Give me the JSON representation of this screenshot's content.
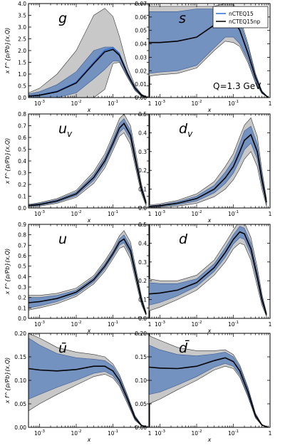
{
  "figure": {
    "legend": [
      "nCTEQ15",
      "nCTEQ15np"
    ],
    "annotation": "Q=1.3 GeV",
    "ylabel": "x f^{p/Pb}(x,Q)",
    "xlabel": "x",
    "colors": {
      "band_outer": "#c8c8c8",
      "band_inner": "#6f8fc0",
      "line_main": "#000000",
      "line_alt": "#2a6fdb",
      "frame": "#000000"
    }
  },
  "chart_data": [
    {
      "type": "line",
      "title": "g",
      "xscale": "log",
      "xlim": [
        0.0005,
        1
      ],
      "ylim": [
        0,
        4.0
      ],
      "yticks": [
        "0.0",
        "0.5",
        "1.0",
        "1.5",
        "2.0",
        "2.5",
        "3.0",
        "3.5",
        "4.0"
      ],
      "xticks": [
        "10^-3",
        "10^-2",
        "10^-1",
        "1"
      ],
      "x": [
        0.0005,
        0.001,
        0.003,
        0.01,
        0.03,
        0.06,
        0.1,
        0.15,
        0.25,
        0.4,
        0.6,
        0.9
      ],
      "series": [
        {
          "name": "nCTEQ15np",
          "values": [
            0.06,
            0.1,
            0.25,
            0.62,
            1.45,
            1.95,
            2.05,
            1.8,
            1.0,
            0.4,
            0.1,
            0.0
          ]
        },
        {
          "name": "nCTEQ15",
          "values": [
            0.07,
            0.11,
            0.27,
            0.66,
            1.5,
            2.02,
            2.12,
            1.85,
            1.02,
            0.41,
            0.1,
            0.0
          ]
        }
      ],
      "band_outer": {
        "lower": [
          0.0,
          0.0,
          0.0,
          0.0,
          0.0,
          0.35,
          1.45,
          1.5,
          0.85,
          0.3,
          0.05,
          0.0
        ],
        "upper": [
          0.2,
          0.4,
          1.0,
          2.0,
          3.5,
          3.8,
          3.45,
          2.6,
          1.3,
          0.5,
          0.15,
          0.0
        ]
      },
      "band_inner": {
        "lower": [
          0.0,
          0.0,
          0.0,
          0.2,
          0.8,
          1.2,
          1.55,
          1.55,
          0.9,
          0.32,
          0.07,
          0.0
        ],
        "upper": [
          0.15,
          0.25,
          0.55,
          1.1,
          2.0,
          2.15,
          2.15,
          1.9,
          1.08,
          0.45,
          0.12,
          0.0
        ]
      }
    },
    {
      "type": "line",
      "title": "s",
      "xscale": "log",
      "xlim": [
        0.0005,
        1
      ],
      "ylim": [
        0,
        0.07
      ],
      "yticks": [
        "0.00",
        "0.01",
        "0.02",
        "0.03",
        "0.04",
        "0.05",
        "0.06",
        "0.07"
      ],
      "xticks": [
        "10^-3",
        "10^-2",
        "10^-1",
        "1"
      ],
      "x": [
        0.0005,
        0.001,
        0.003,
        0.01,
        0.03,
        0.06,
        0.1,
        0.15,
        0.25,
        0.4,
        0.6,
        0.9
      ],
      "series": [
        {
          "name": "nCTEQ15np",
          "values": [
            0.041,
            0.041,
            0.042,
            0.045,
            0.054,
            0.06,
            0.058,
            0.05,
            0.033,
            0.015,
            0.004,
            0.0
          ]
        }
      ],
      "band_outer": {
        "lower": [
          0.016,
          0.017,
          0.018,
          0.022,
          0.035,
          0.042,
          0.041,
          0.038,
          0.026,
          0.011,
          0.003,
          0.0
        ],
        "upper": [
          0.068,
          0.068,
          0.068,
          0.068,
          0.068,
          0.07,
          0.07,
          0.06,
          0.04,
          0.018,
          0.005,
          0.0
        ]
      },
      "band_inner": {
        "lower": [
          0.018,
          0.019,
          0.02,
          0.024,
          0.037,
          0.045,
          0.045,
          0.04,
          0.028,
          0.012,
          0.003,
          0.0
        ],
        "upper": [
          0.064,
          0.064,
          0.064,
          0.066,
          0.066,
          0.067,
          0.065,
          0.057,
          0.038,
          0.017,
          0.005,
          0.0
        ]
      }
    },
    {
      "type": "line",
      "title": "u_v",
      "xscale": "log",
      "xlim": [
        0.0005,
        1
      ],
      "ylim": [
        0,
        0.8
      ],
      "yticks": [
        "0.0",
        "0.1",
        "0.2",
        "0.3",
        "0.4",
        "0.5",
        "0.6",
        "0.7",
        "0.8"
      ],
      "xticks": [
        "10^-3",
        "10^-2",
        "10^-1",
        "1"
      ],
      "x": [
        0.0005,
        0.001,
        0.003,
        0.01,
        0.03,
        0.06,
        0.1,
        0.15,
        0.2,
        0.3,
        0.45,
        0.6,
        0.8
      ],
      "series": [
        {
          "name": "nCTEQ15np",
          "values": [
            0.02,
            0.03,
            0.06,
            0.12,
            0.26,
            0.4,
            0.55,
            0.68,
            0.72,
            0.62,
            0.35,
            0.16,
            0.04
          ]
        }
      ],
      "band_outer": {
        "lower": [
          0.01,
          0.015,
          0.04,
          0.09,
          0.21,
          0.34,
          0.49,
          0.61,
          0.64,
          0.54,
          0.29,
          0.12,
          0.02
        ],
        "upper": [
          0.03,
          0.045,
          0.08,
          0.15,
          0.31,
          0.46,
          0.62,
          0.76,
          0.8,
          0.7,
          0.42,
          0.2,
          0.06
        ]
      },
      "band_inner": {
        "lower": [
          0.015,
          0.022,
          0.05,
          0.105,
          0.235,
          0.37,
          0.52,
          0.645,
          0.68,
          0.58,
          0.32,
          0.14,
          0.03
        ],
        "upper": [
          0.025,
          0.038,
          0.07,
          0.135,
          0.285,
          0.43,
          0.585,
          0.72,
          0.76,
          0.66,
          0.38,
          0.18,
          0.05
        ]
      }
    },
    {
      "type": "line",
      "title": "d_v",
      "xscale": "log",
      "xlim": [
        0.0005,
        1
      ],
      "ylim": [
        0,
        0.5
      ],
      "yticks": [
        "0.0",
        "0.1",
        "0.2",
        "0.3",
        "0.4",
        "0.5"
      ],
      "xticks": [
        "10^-3",
        "10^-2",
        "10^-1",
        "1"
      ],
      "x": [
        0.0005,
        0.001,
        0.003,
        0.01,
        0.03,
        0.06,
        0.1,
        0.15,
        0.2,
        0.3,
        0.45,
        0.6,
        0.8
      ],
      "series": [
        {
          "name": "nCTEQ15np",
          "values": [
            0.008,
            0.012,
            0.025,
            0.05,
            0.1,
            0.16,
            0.22,
            0.3,
            0.36,
            0.39,
            0.3,
            0.15,
            0.03
          ]
        }
      ],
      "band_outer": {
        "lower": [
          0.002,
          0.004,
          0.01,
          0.025,
          0.06,
          0.1,
          0.15,
          0.21,
          0.26,
          0.3,
          0.22,
          0.1,
          0.01
        ],
        "upper": [
          0.015,
          0.022,
          0.04,
          0.075,
          0.14,
          0.22,
          0.29,
          0.38,
          0.44,
          0.48,
          0.38,
          0.2,
          0.05
        ]
      },
      "band_inner": {
        "lower": [
          0.005,
          0.008,
          0.017,
          0.037,
          0.08,
          0.13,
          0.185,
          0.255,
          0.31,
          0.345,
          0.26,
          0.125,
          0.02
        ],
        "upper": [
          0.011,
          0.016,
          0.033,
          0.063,
          0.12,
          0.19,
          0.255,
          0.345,
          0.41,
          0.435,
          0.34,
          0.175,
          0.04
        ]
      }
    },
    {
      "type": "line",
      "title": "u",
      "xscale": "log",
      "xlim": [
        0.0005,
        1
      ],
      "ylim": [
        0,
        0.9
      ],
      "yticks": [
        "0.0",
        "0.1",
        "0.2",
        "0.3",
        "0.4",
        "0.5",
        "0.6",
        "0.7",
        "0.8",
        "0.9"
      ],
      "xticks": [
        "10^-3",
        "10^-2",
        "10^-1",
        "1"
      ],
      "x": [
        0.0005,
        0.001,
        0.003,
        0.01,
        0.03,
        0.06,
        0.1,
        0.15,
        0.2,
        0.3,
        0.45,
        0.6,
        0.8
      ],
      "series": [
        {
          "name": "nCTEQ15np",
          "values": [
            0.15,
            0.16,
            0.19,
            0.25,
            0.37,
            0.5,
            0.62,
            0.73,
            0.76,
            0.65,
            0.37,
            0.17,
            0.04
          ]
        }
      ],
      "band_outer": {
        "lower": [
          0.08,
          0.1,
          0.14,
          0.21,
          0.33,
          0.45,
          0.57,
          0.67,
          0.69,
          0.57,
          0.31,
          0.13,
          0.03
        ],
        "upper": [
          0.22,
          0.22,
          0.24,
          0.29,
          0.41,
          0.55,
          0.67,
          0.79,
          0.84,
          0.73,
          0.43,
          0.21,
          0.06
        ]
      },
      "band_inner": {
        "lower": [
          0.1,
          0.12,
          0.16,
          0.23,
          0.35,
          0.475,
          0.595,
          0.7,
          0.725,
          0.61,
          0.34,
          0.15,
          0.035
        ],
        "upper": [
          0.2,
          0.2,
          0.22,
          0.27,
          0.39,
          0.525,
          0.645,
          0.76,
          0.8,
          0.69,
          0.4,
          0.19,
          0.05
        ]
      }
    },
    {
      "type": "line",
      "title": "d",
      "xscale": "log",
      "xlim": [
        0.0005,
        1
      ],
      "ylim": [
        0,
        0.5
      ],
      "yticks": [
        "0.0",
        "0.1",
        "0.2",
        "0.3",
        "0.4",
        "0.5"
      ],
      "xticks": [
        "10^-3",
        "10^-2",
        "10^-1",
        "1"
      ],
      "x": [
        0.0005,
        0.001,
        0.003,
        0.01,
        0.03,
        0.06,
        0.1,
        0.15,
        0.2,
        0.3,
        0.45,
        0.6,
        0.8
      ],
      "series": [
        {
          "name": "nCTEQ15np",
          "values": [
            0.13,
            0.135,
            0.15,
            0.19,
            0.27,
            0.35,
            0.42,
            0.46,
            0.45,
            0.37,
            0.22,
            0.1,
            0.02
          ]
        }
      ],
      "band_outer": {
        "lower": [
          0.04,
          0.06,
          0.1,
          0.15,
          0.23,
          0.3,
          0.37,
          0.4,
          0.39,
          0.31,
          0.17,
          0.07,
          0.01
        ],
        "upper": [
          0.21,
          0.2,
          0.2,
          0.23,
          0.31,
          0.4,
          0.47,
          0.52,
          0.51,
          0.43,
          0.27,
          0.13,
          0.03
        ]
      },
      "band_inner": {
        "lower": [
          0.07,
          0.085,
          0.12,
          0.17,
          0.25,
          0.325,
          0.395,
          0.43,
          0.42,
          0.34,
          0.195,
          0.085,
          0.015
        ],
        "upper": [
          0.19,
          0.185,
          0.185,
          0.21,
          0.29,
          0.375,
          0.445,
          0.49,
          0.48,
          0.4,
          0.245,
          0.115,
          0.025
        ]
      }
    },
    {
      "type": "line",
      "title": "ū",
      "xscale": "log",
      "xlim": [
        0.0005,
        1
      ],
      "ylim": [
        0,
        0.2
      ],
      "yticks": [
        "0.00",
        "0.05",
        "0.10",
        "0.15",
        "0.20"
      ],
      "xticks": [
        "10^-3",
        "10^-2",
        "10^-1",
        "1"
      ],
      "x": [
        0.0005,
        0.001,
        0.003,
        0.01,
        0.03,
        0.06,
        0.1,
        0.15,
        0.25,
        0.4,
        0.6,
        0.9
      ],
      "series": [
        {
          "name": "nCTEQ15np",
          "values": [
            0.125,
            0.122,
            0.12,
            0.123,
            0.13,
            0.13,
            0.12,
            0.1,
            0.06,
            0.02,
            0.004,
            0.0
          ]
        }
      ],
      "band_outer": {
        "lower": [
          0.035,
          0.05,
          0.07,
          0.09,
          0.108,
          0.113,
          0.105,
          0.088,
          0.05,
          0.015,
          0.003,
          0.0
        ],
        "upper": [
          0.2,
          0.19,
          0.17,
          0.16,
          0.155,
          0.15,
          0.135,
          0.112,
          0.068,
          0.025,
          0.005,
          0.0
        ]
      },
      "band_inner": {
        "lower": [
          0.06,
          0.07,
          0.085,
          0.1,
          0.115,
          0.119,
          0.11,
          0.092,
          0.054,
          0.017,
          0.003,
          0.0
        ],
        "upper": [
          0.19,
          0.175,
          0.157,
          0.148,
          0.145,
          0.142,
          0.13,
          0.108,
          0.065,
          0.023,
          0.005,
          0.0
        ]
      }
    },
    {
      "type": "line",
      "title": "d̄",
      "xscale": "log",
      "xlim": [
        0.0005,
        1
      ],
      "ylim": [
        0,
        0.2
      ],
      "yticks": [
        "0.00",
        "0.05",
        "0.10",
        "0.15",
        "0.20"
      ],
      "xticks": [
        "10^-3",
        "10^-2",
        "10^-1",
        "1"
      ],
      "x": [
        0.0005,
        0.001,
        0.003,
        0.01,
        0.03,
        0.06,
        0.1,
        0.15,
        0.25,
        0.4,
        0.6,
        0.9
      ],
      "series": [
        {
          "name": "nCTEQ15np",
          "values": [
            0.128,
            0.126,
            0.125,
            0.13,
            0.142,
            0.148,
            0.14,
            0.12,
            0.075,
            0.025,
            0.005,
            0.0
          ]
        }
      ],
      "band_outer": {
        "lower": [
          0.05,
          0.06,
          0.08,
          0.1,
          0.122,
          0.13,
          0.125,
          0.107,
          0.065,
          0.02,
          0.004,
          0.0
        ],
        "upper": [
          0.195,
          0.185,
          0.17,
          0.163,
          0.163,
          0.165,
          0.155,
          0.132,
          0.085,
          0.03,
          0.006,
          0.0
        ]
      },
      "band_inner": {
        "lower": [
          0.07,
          0.075,
          0.09,
          0.108,
          0.128,
          0.136,
          0.13,
          0.111,
          0.068,
          0.022,
          0.004,
          0.0
        ],
        "upper": [
          0.175,
          0.165,
          0.155,
          0.152,
          0.156,
          0.16,
          0.15,
          0.128,
          0.082,
          0.028,
          0.006,
          0.0
        ]
      }
    }
  ]
}
